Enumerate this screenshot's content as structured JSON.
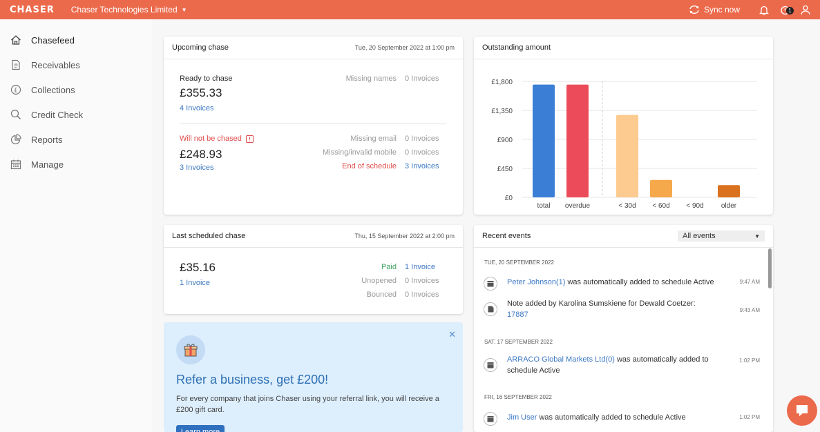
{
  "topbar": {
    "brand": "CHASER",
    "company": "Chaser Technologies Limited",
    "sync_label": "Sync now",
    "notification_count": "1"
  },
  "sidebar": {
    "items": [
      {
        "label": "Chasefeed",
        "icon": "home-icon"
      },
      {
        "label": "Receivables",
        "icon": "document-icon"
      },
      {
        "label": "Collections",
        "icon": "pound-coin-icon"
      },
      {
        "label": "Credit Check",
        "icon": "search-icon"
      },
      {
        "label": "Reports",
        "icon": "pie-chart-icon"
      },
      {
        "label": "Manage",
        "icon": "calendar-icon"
      }
    ]
  },
  "upcoming": {
    "title": "Upcoming chase",
    "date": "Tue, 20 September 2022 at 1:00 pm",
    "ready_label": "Ready to chase",
    "ready_amount": "£355.33",
    "ready_invoices": "4 Invoices",
    "missing_names_label": "Missing names",
    "missing_names_value": "0 Invoices",
    "not_chased_label": "Will not be chased",
    "not_chased_amount": "£248.93",
    "not_chased_invoices": "3 Invoices",
    "rows": [
      {
        "label": "Missing email",
        "value": "0 Invoices"
      },
      {
        "label": "Missing/invalid mobile",
        "value": "0 Invoices"
      },
      {
        "label": "End of schedule",
        "value": "3 Invoices"
      }
    ]
  },
  "outstanding": {
    "title": "Outstanding amount"
  },
  "chart_data": {
    "type": "bar",
    "categories": [
      "total",
      "overdue",
      "< 30d",
      "< 60d",
      "< 90d",
      "older"
    ],
    "values": [
      1750,
      1750,
      1280,
      270,
      0,
      190
    ],
    "colors": [
      "#3a7fd5",
      "#ec4c5a",
      "#fdcb8f",
      "#f5a94b",
      "#f5a94b",
      "#d9711e"
    ],
    "yticks": [
      "£0",
      "£450",
      "£900",
      "£1,350",
      "£1,800"
    ],
    "ylim": [
      0,
      1800
    ],
    "grid": true
  },
  "last": {
    "title": "Last scheduled chase",
    "date": "Thu, 15 September 2022 at 2:00 pm",
    "amount": "£35.16",
    "invoices": "1 Invoice",
    "rows": [
      {
        "label": "Paid",
        "value": "1 Invoice"
      },
      {
        "label": "Unopened",
        "value": "0 Invoices"
      },
      {
        "label": "Bounced",
        "value": "0 Invoices"
      }
    ]
  },
  "refer": {
    "title": "Refer a business, get £200!",
    "text": "For every company that joins Chaser using your referral link, you will receive a £200 gift card.",
    "button": "Learn more"
  },
  "events": {
    "title": "Recent events",
    "filter": "All events",
    "days": [
      "Tue, 20 September 2022",
      "Sat, 17 September 2022",
      "Fri, 16 September 2022"
    ],
    "items": [
      {
        "link": "Peter Johnson(1)",
        "text": " was automatically added to schedule Active",
        "time": "9:47 AM"
      },
      {
        "text": "Note added by Karolina Sumskiene for Dewald Coetzer:",
        "link": "17887",
        "time": "9:43 AM"
      },
      {
        "link": "ARRACO Global Markets Ltd(0)",
        "text": " was automatically added to schedule Active",
        "time": "1:02 PM"
      },
      {
        "link": "Jim User",
        "text": " was automatically added to schedule Active",
        "time": "1:02 PM"
      }
    ]
  }
}
